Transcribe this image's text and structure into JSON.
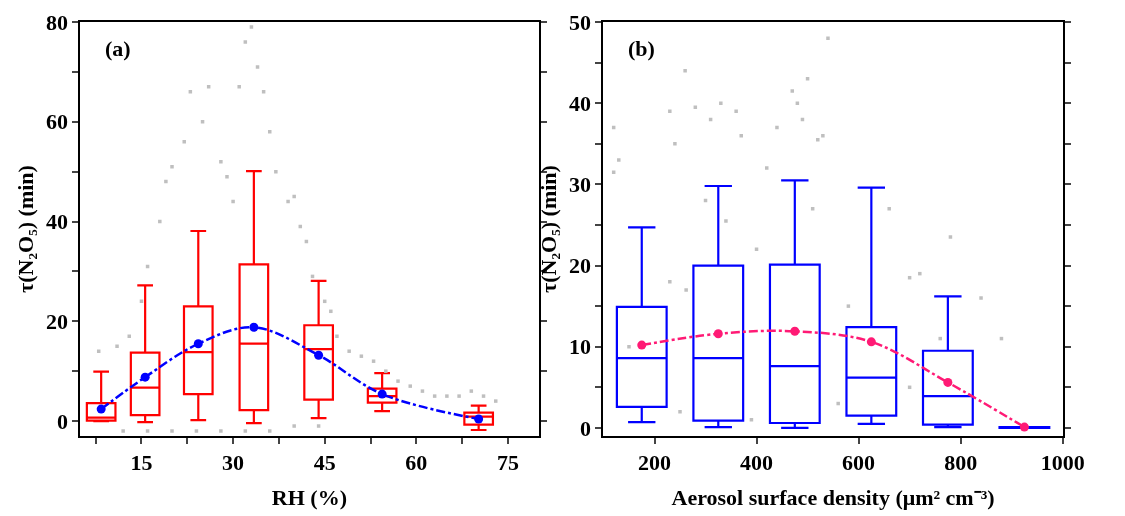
{
  "chart_data": [
    {
      "type": "box",
      "xlabel": "RH (%)",
      "ylabel": "τ(N₂O₅) (min)",
      "annotations": [
        "(a)"
      ],
      "xlim": [
        5,
        80
      ],
      "ylim": [
        -3,
        80
      ],
      "xticks": [
        {
          "value": 7.5,
          "label": null
        },
        15,
        {
          "value": 22.5,
          "label": null
        },
        30,
        {
          "value": 37.5,
          "label": null
        },
        45,
        {
          "value": 52.5,
          "label": null
        },
        60,
        {
          "value": 67.5,
          "label": null
        },
        75
      ],
      "yticks": [
        0,
        {
          "value": 10,
          "label": null
        },
        20,
        {
          "value": 30,
          "label": null
        },
        40,
        {
          "value": 50,
          "label": null
        },
        60,
        {
          "value": 70,
          "label": null
        },
        80
      ],
      "series": [
        {
          "type": "scatter",
          "color": "#bfbfbf",
          "marker": "square",
          "x": [
            8,
            11,
            13,
            15,
            16,
            18,
            19,
            20,
            22,
            23,
            25,
            26,
            28,
            29,
            30,
            31,
            32,
            33,
            34,
            35,
            36,
            37,
            39,
            40,
            41,
            42,
            43,
            45,
            46,
            47,
            49,
            51,
            53,
            55,
            57,
            59,
            61,
            63,
            65,
            67,
            69,
            71,
            73,
            12,
            16,
            20,
            24,
            28,
            32,
            36,
            40,
            44
          ],
          "values": [
            14,
            15,
            17,
            24,
            31,
            40,
            48,
            51,
            56,
            66,
            60,
            67,
            52,
            49,
            44,
            67,
            76,
            79,
            71,
            66,
            58,
            50,
            44,
            45,
            39,
            36,
            29,
            24,
            22,
            17,
            14,
            13,
            12,
            10,
            8,
            7,
            6,
            5,
            5,
            5,
            6,
            5,
            4,
            -2,
            -2,
            -2,
            -2,
            -2,
            -2,
            -2,
            -1,
            -1
          ]
        },
        {
          "color": "#ff0000",
          "x": [
            8.4,
            15.6,
            24.3,
            33.4,
            44.0,
            54.4,
            70.2
          ],
          "boxes": [
            {
              "low": 0,
              "q1": 0.1,
              "median": 0.7,
              "q3": 3.6,
              "high": 9.9
            },
            {
              "low": -0.2,
              "q1": 1.2,
              "median": 6.7,
              "q3": 13.7,
              "high": 27.2
            },
            {
              "low": 0.2,
              "q1": 5.4,
              "median": 13.8,
              "q3": 23.0,
              "high": 38.1
            },
            {
              "low": -0.4,
              "q1": 2.2,
              "median": 15.5,
              "q3": 31.4,
              "high": 50.1
            },
            {
              "low": 0.6,
              "q1": 4.3,
              "median": 14.4,
              "q3": 19.2,
              "high": 28.1
            },
            {
              "low": 2.0,
              "q1": 3.7,
              "median": 5.0,
              "q3": 6.5,
              "high": 9.6
            },
            {
              "low": -1.8,
              "q1": -0.7,
              "median": 0.9,
              "q3": 1.7,
              "high": 3.1
            }
          ]
        },
        {
          "type": "line",
          "color": "#0000ff",
          "marker": "circle",
          "line_style": "dashdot",
          "x": [
            8.4,
            15.6,
            24.3,
            33.4,
            44.0,
            54.4,
            70.2
          ],
          "values": [
            2.4,
            8.8,
            15.5,
            18.8,
            13.2,
            5.4,
            0.4
          ]
        }
      ]
    },
    {
      "type": "box",
      "xlabel": "Aerosol surface density (μm² cm⁻³)",
      "ylabel": "τ(N₂O₅) (min)",
      "annotations": [
        "(b)"
      ],
      "xlim": [
        100,
        1000
      ],
      "ylim": [
        -1,
        50
      ],
      "xticks": [
        200,
        400,
        600,
        800,
        1000
      ],
      "yticks": [
        0,
        {
          "value": 5,
          "label": null
        },
        10,
        {
          "value": 15,
          "label": null
        },
        20,
        {
          "value": 25,
          "label": null
        },
        30,
        {
          "value": 35,
          "label": null
        },
        40,
        {
          "value": 45,
          "label": null
        },
        50
      ],
      "series": [
        {
          "type": "scatter",
          "color": "#bfbfbf",
          "marker": "square",
          "x": [
            120,
            120,
            130,
            230,
            240,
            260,
            280,
            300,
            310,
            330,
            340,
            360,
            370,
            420,
            440,
            470,
            480,
            490,
            500,
            510,
            520,
            530,
            540,
            580,
            660,
            700,
            720,
            760,
            780,
            840,
            880,
            262,
            230,
            400,
            150,
            250,
            390,
            560,
            700
          ],
          "values": [
            37,
            31.5,
            33,
            39,
            35,
            44,
            39.5,
            28,
            38,
            40,
            25.5,
            39,
            36,
            32,
            37,
            41.5,
            40,
            38,
            43,
            27,
            35.5,
            36,
            48,
            15,
            27,
            18.5,
            19,
            11,
            23.5,
            16,
            11,
            17,
            18,
            22,
            10,
            2,
            1,
            3,
            5
          ]
        },
        {
          "color": "#0000ff",
          "x": [
            175,
            325,
            475,
            625,
            775,
            925
          ],
          "boxes": [
            {
              "low": 0.7,
              "q1": 2.6,
              "median": 8.6,
              "q3": 14.9,
              "high": 24.7
            },
            {
              "low": 0.1,
              "q1": 0.9,
              "median": 8.6,
              "q3": 20.0,
              "high": 29.8
            },
            {
              "low": 0,
              "q1": 0.6,
              "median": 7.6,
              "q3": 20.1,
              "high": 30.5
            },
            {
              "low": 0.5,
              "q1": 1.5,
              "median": 6.2,
              "q3": 12.4,
              "high": 29.6
            },
            {
              "low": 0.1,
              "q1": 0.4,
              "median": 3.9,
              "q3": 9.5,
              "high": 16.2
            },
            {
              "low": 0,
              "q1": 0,
              "median": 0,
              "q3": 0.1,
              "high": 0.1
            }
          ]
        },
        {
          "type": "line",
          "color": "#ff1a75",
          "marker": "circle",
          "line_style": "dashdot",
          "x": [
            175,
            325,
            475,
            625,
            775,
            925
          ],
          "values": [
            10.2,
            11.6,
            11.9,
            10.6,
            5.6,
            0.1
          ]
        }
      ]
    }
  ]
}
